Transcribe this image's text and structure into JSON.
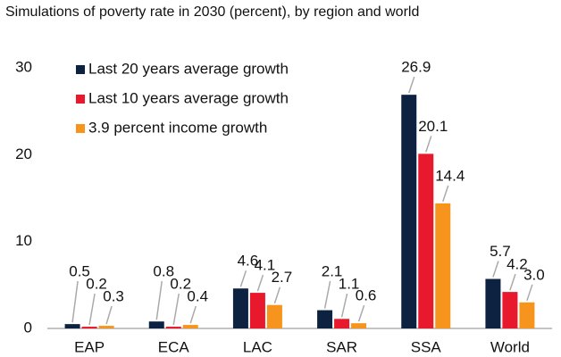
{
  "chart_data": {
    "type": "bar",
    "title": "Simulations of poverty rate in 2030 (percent), by region and world",
    "categories": [
      "EAP",
      "ECA",
      "LAC",
      "SAR",
      "SSA",
      "World"
    ],
    "series": [
      {
        "name": "Last 20 years average growth",
        "color": "#0d2240",
        "values": [
          0.5,
          0.8,
          4.6,
          2.1,
          26.9,
          5.7
        ],
        "value_labels": [
          "0.5",
          "0.8",
          "4.6",
          "2.1",
          "26.9",
          "5.7"
        ]
      },
      {
        "name": "Last 10 years average growth",
        "color": "#e8192c",
        "values": [
          0.2,
          0.2,
          4.1,
          1.1,
          20.1,
          4.2
        ],
        "value_labels": [
          "0.2",
          "0.2",
          "4.1",
          "1.1",
          "20.1",
          "4.2"
        ]
      },
      {
        "name": "3.9 percent income growth",
        "color": "#f7941d",
        "values": [
          0.3,
          0.4,
          2.7,
          0.6,
          14.4,
          3.0
        ],
        "value_labels": [
          "0.3",
          "0.4",
          "2.7",
          "0.6",
          "14.4",
          "3.0"
        ]
      }
    ],
    "ylim": [
      0,
      30
    ],
    "yticks": [
      0,
      10,
      20,
      30
    ],
    "grid": false,
    "legend": "upper left"
  }
}
